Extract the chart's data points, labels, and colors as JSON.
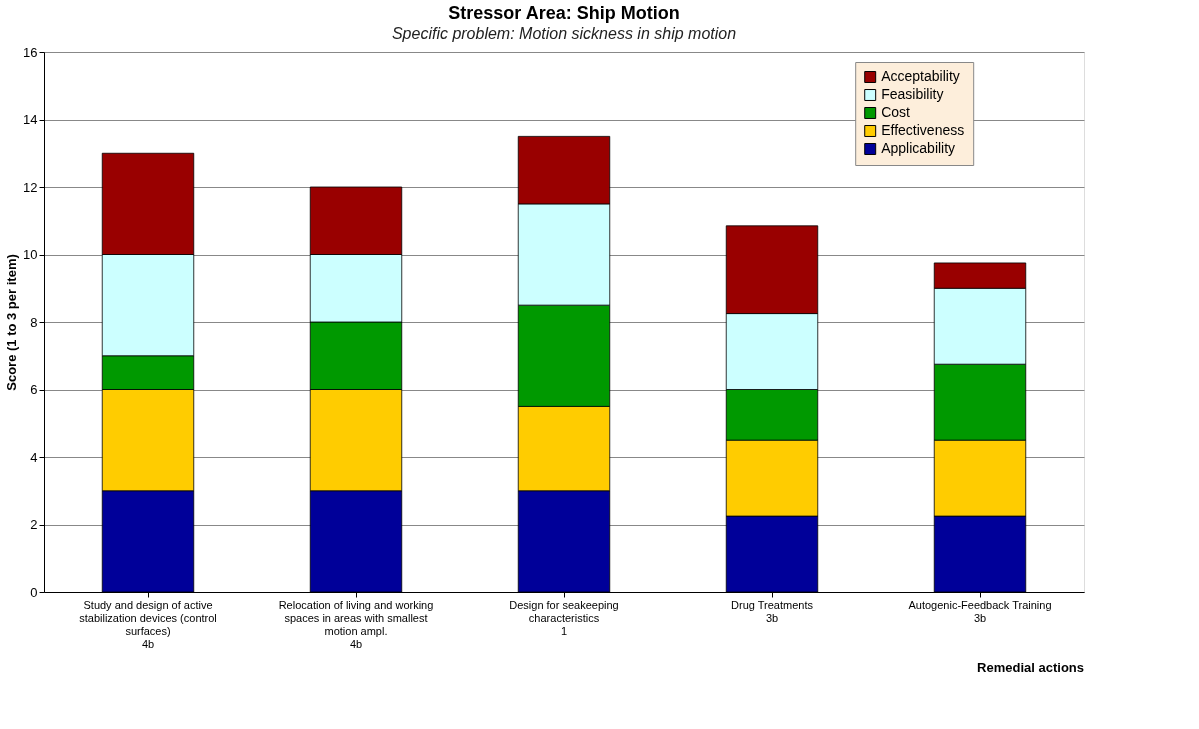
{
  "chart_data": {
    "type": "bar",
    "stacked": true,
    "title": "Stressor Area: Ship Motion",
    "subtitle": "Specific problem:  Motion sickness in ship motion",
    "xlabel": "Remedial actions",
    "ylabel": "Score (1 to 3 per item)",
    "categories": [
      "Study and design of active\nstabilization devices (control\nsurfaces)\n4b",
      "Relocation of living and working\nspaces in areas with smallest\nmotion ampl.\n4b",
      "Design for seakeeping\ncharacteristics\n1",
      "Drug Treatments\n3b",
      "Autogenic-Feedback Training\n3b"
    ],
    "series": [
      {
        "name": "Applicability",
        "color": "#000099",
        "values": [
          3,
          3,
          3,
          2.25,
          2.25
        ]
      },
      {
        "name": "Effectiveness",
        "color": "#ffcc00",
        "values": [
          3,
          3,
          2.5,
          2.25,
          2.25
        ]
      },
      {
        "name": "Cost",
        "color": "#009900",
        "values": [
          1,
          2,
          3,
          1.5,
          2.25
        ]
      },
      {
        "name": "Feasibility",
        "color": "#ccffff",
        "values": [
          3,
          2,
          3,
          2.25,
          2.25
        ]
      },
      {
        "name": "Acceptability",
        "color": "#990000",
        "values": [
          3,
          2,
          2,
          2.6,
          0.75
        ]
      }
    ],
    "ylim": [
      0,
      16
    ],
    "yticks": [
      0,
      2,
      4,
      6,
      8,
      10,
      12,
      14,
      16
    ],
    "grid": "y",
    "legend": "top right"
  }
}
